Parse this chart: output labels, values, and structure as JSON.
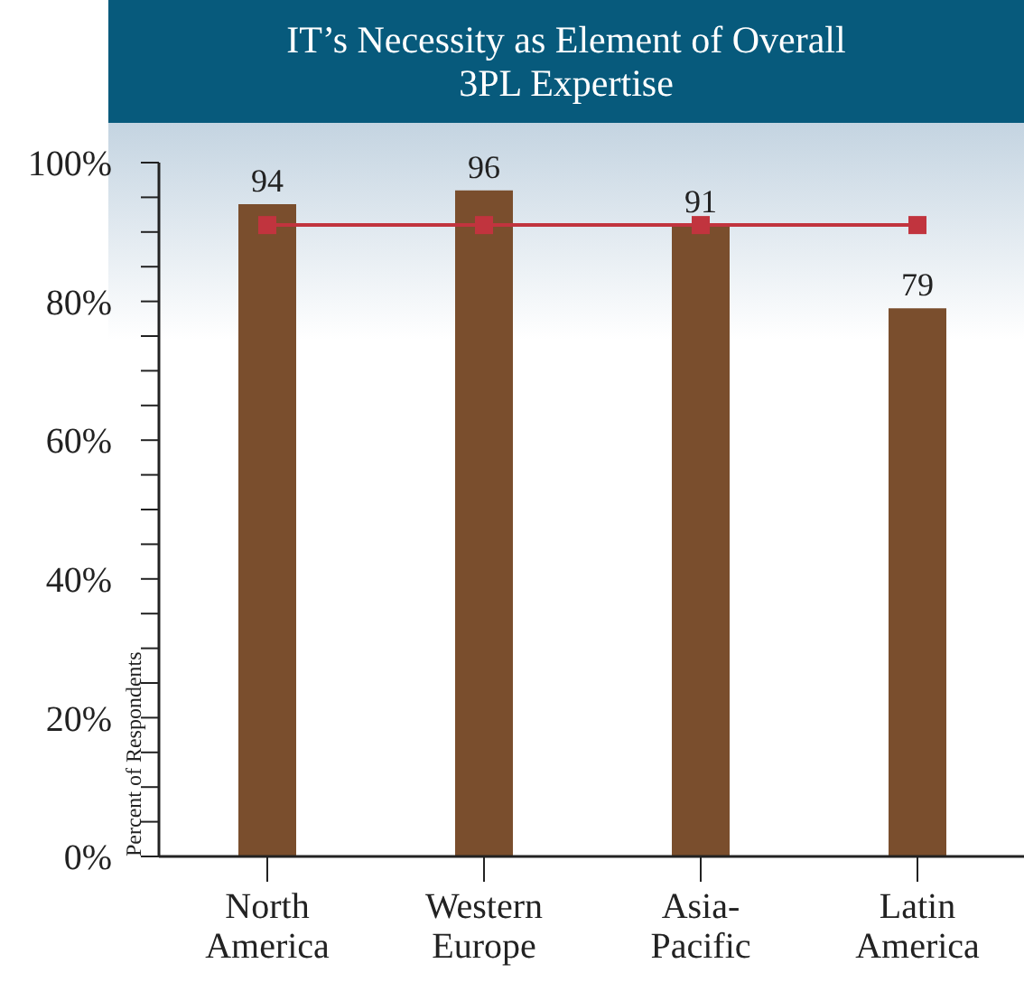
{
  "chart_data": {
    "type": "bar",
    "title": "IT’s Necessity as Element of Overall 3PL Expertise",
    "ylabel": "Percent of Respondents",
    "categories": [
      "North America",
      "Western Europe",
      "Asia-Pacific",
      "Latin America"
    ],
    "series": [
      {
        "color": "#7a4e2d",
        "values": [
          94,
          96,
          91,
          79
        ],
        "value_labels": [
          "94",
          "96",
          "91",
          "79"
        ]
      },
      {
        "type": "line",
        "color": "#c1343e",
        "values": [
          91,
          91,
          91,
          91
        ],
        "marker": "square"
      }
    ],
    "ylim": [
      0,
      100
    ],
    "yticks": [
      {
        "value": 0,
        "label": "0%"
      },
      {
        "value": 5,
        "label": null
      },
      {
        "value": 10,
        "label": null
      },
      {
        "value": 15,
        "label": null
      },
      {
        "value": 20,
        "label": "20%"
      },
      {
        "value": 25,
        "label": null
      },
      {
        "value": 30,
        "label": null
      },
      {
        "value": 35,
        "label": null
      },
      {
        "value": 40,
        "label": "40%"
      },
      {
        "value": 45,
        "label": null
      },
      {
        "value": 50,
        "label": null
      },
      {
        "value": 55,
        "label": null
      },
      {
        "value": 60,
        "label": "60%"
      },
      {
        "value": 65,
        "label": null
      },
      {
        "value": 70,
        "label": null
      },
      {
        "value": 75,
        "label": null
      },
      {
        "value": 80,
        "label": "80%"
      },
      {
        "value": 85,
        "label": null
      },
      {
        "value": 90,
        "label": null
      },
      {
        "value": 95,
        "label": null
      },
      {
        "value": 100,
        "label": "100%"
      }
    ],
    "grid": false,
    "legend": false
  }
}
